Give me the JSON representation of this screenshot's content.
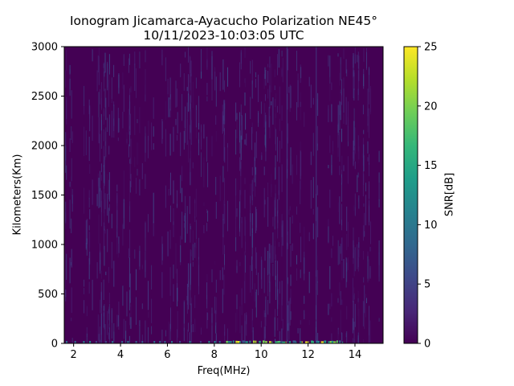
{
  "chart_data": {
    "type": "heatmap",
    "title": "Ionogram Jicamarca-Ayacucho Polarization NE45°",
    "subtitle": "10/11/2023-10:03:05 UTC",
    "xlabel": "Freq(MHz)",
    "ylabel": "Kilometers(Km)",
    "xlim": [
      1.6,
      15.2
    ],
    "ylim": [
      0,
      3000
    ],
    "xticks": [
      2,
      4,
      6,
      8,
      10,
      12,
      14
    ],
    "yticks": [
      0,
      500,
      1000,
      1500,
      2000,
      2500,
      3000
    ],
    "colorbar": {
      "label": "SNR[dB]",
      "colormap": "viridis",
      "range": [
        0,
        25
      ],
      "ticks": [
        0,
        5,
        10,
        15,
        20,
        25
      ]
    },
    "background_value": 0,
    "dominant_range_db": [
      0,
      5
    ],
    "bright_lines_mhz": [
      11.1,
      12.35
    ],
    "ground_echo_band": {
      "height_km": [
        0,
        30
      ],
      "freq_mhz": [
        8.5,
        13.5
      ],
      "peak_db": 25
    }
  },
  "colors": {
    "viridis_stops": [
      "#440154",
      "#482878",
      "#3e4989",
      "#31688e",
      "#26828e",
      "#1f9e89",
      "#35b779",
      "#6ece58",
      "#b5de2b",
      "#fde725"
    ]
  }
}
